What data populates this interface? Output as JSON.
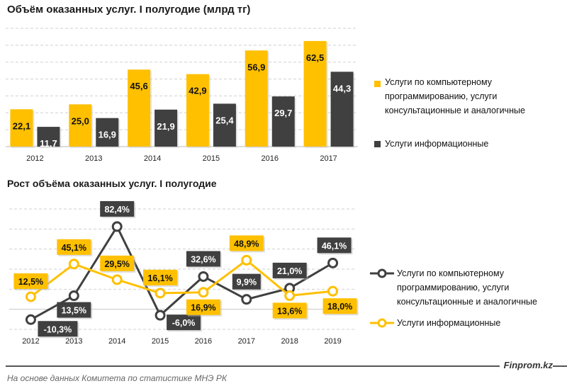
{
  "chart_data": [
    {
      "type": "bar",
      "title": "Объём оказанных услуг. I полугодие (млрд тг)",
      "categories": [
        "2012",
        "2013",
        "2014",
        "2015",
        "2016",
        "2017"
      ],
      "ylim": [
        0,
        70
      ],
      "grid": true,
      "legend_position": "right",
      "series": [
        {
          "name": "Услуги по компьютерному программированию, услуги консультационные и аналогичные",
          "color": "#FFC000",
          "values": [
            22.1,
            25.0,
            45.6,
            42.9,
            56.9,
            62.5
          ],
          "labels": [
            "22,1",
            "25,0",
            "45,6",
            "42,9",
            "56,9",
            "62,5"
          ]
        },
        {
          "name": "Услуги информационные",
          "color": "#404040",
          "values": [
            11.7,
            16.9,
            21.9,
            25.4,
            29.7,
            44.3
          ],
          "labels": [
            "11,7",
            "16,9",
            "21,9",
            "25,4",
            "29,7",
            "44,3"
          ]
        }
      ]
    },
    {
      "type": "line",
      "title": "Рост объёма оказанных услуг. I полугодие",
      "categories": [
        "2012",
        "2013",
        "2014",
        "2015",
        "2016",
        "2017",
        "2018",
        "2019"
      ],
      "ylim": [
        -20,
        100
      ],
      "grid": true,
      "legend_position": "right",
      "series": [
        {
          "name": "Услуги по компьютерному программированию, услуги консультационные и аналогичные",
          "color": "#404040",
          "values": [
            -10.3,
            13.5,
            82.4,
            -6.0,
            32.6,
            9.9,
            21.0,
            46.1
          ],
          "labels": [
            "-10,3%",
            "13,5%",
            "82,4%",
            "-6,0%",
            "32,6%",
            "9,9%",
            "21,0%",
            "46,1%"
          ]
        },
        {
          "name": "Услуги информационные",
          "color": "#FFC000",
          "values": [
            12.5,
            45.1,
            29.5,
            16.1,
            16.9,
            48.9,
            13.6,
            18.0
          ],
          "labels": [
            "12,5%",
            "45,1%",
            "29,5%",
            "16,1%",
            "16,9%",
            "48,9%",
            "13,6%",
            "18,0%"
          ]
        }
      ]
    }
  ],
  "legend1": {
    "line1": "Услуги по компьютерному",
    "line2": "программированию, услуги",
    "line3": "консультационные и аналогичные",
    "item2": "Услуги информационные"
  },
  "legend2": {
    "line1": "Услуги по компьютерному",
    "line2": "программированию, услуги",
    "line3": "консультационные и аналогичные",
    "item2": "Услуги информационные"
  },
  "footer": {
    "brand": "Finprom.kz",
    "source": "На основе данных  Комитета по статистике МНЭ РК"
  }
}
